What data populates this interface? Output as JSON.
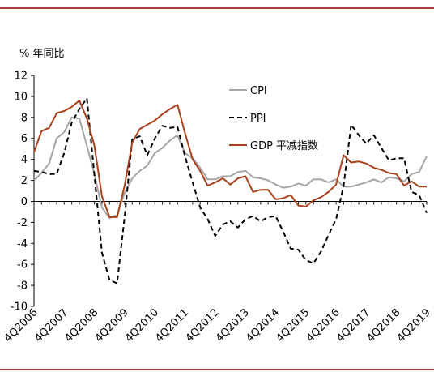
{
  "colors": {
    "top_rule": "#8b0000",
    "bottom_rule": "#8b0000",
    "cpi": "#a6a6a6",
    "ppi": "#000000",
    "gdp": "#a9411d"
  },
  "chart_data": {
    "type": "line",
    "unit_label": "% 年同比",
    "ylim": [
      -10,
      12
    ],
    "yticks": [
      -10,
      -8,
      -6,
      -4,
      -2,
      0,
      2,
      4,
      6,
      8,
      10,
      12
    ],
    "xlim": [
      0,
      52
    ],
    "xticks": [
      {
        "q": 0,
        "label": "4Q2006"
      },
      {
        "q": 4,
        "label": "4Q2007"
      },
      {
        "q": 8,
        "label": "4Q2008"
      },
      {
        "q": 12,
        "label": "4Q2009"
      },
      {
        "q": 16,
        "label": "4Q2010"
      },
      {
        "q": 20,
        "label": "4Q2011"
      },
      {
        "q": 24,
        "label": "4Q2012"
      },
      {
        "q": 28,
        "label": "4Q2013"
      },
      {
        "q": 32,
        "label": "4Q2014"
      },
      {
        "q": 36,
        "label": "4Q2015"
      },
      {
        "q": 40,
        "label": "4Q2016"
      },
      {
        "q": 44,
        "label": "4Q2017"
      },
      {
        "q": 48,
        "label": "4Q2018"
      },
      {
        "q": 52,
        "label": "4Q2019"
      }
    ],
    "grid": false,
    "legend_position": "top-right",
    "series": [
      {
        "name": "CPI",
        "style": "solid",
        "points": [
          [
            0,
            2.0
          ],
          [
            1,
            2.7
          ],
          [
            2,
            3.6
          ],
          [
            3,
            6.0
          ],
          [
            4,
            6.6
          ],
          [
            5,
            8.0
          ],
          [
            6,
            7.9
          ],
          [
            7,
            5.3
          ],
          [
            8,
            2.6
          ],
          [
            9,
            -0.6
          ],
          [
            10,
            -1.6
          ],
          [
            11,
            -1.3
          ],
          [
            12,
            0.8
          ],
          [
            13,
            2.2
          ],
          [
            14,
            2.9
          ],
          [
            15,
            3.4
          ],
          [
            16,
            4.6
          ],
          [
            17,
            5.1
          ],
          [
            18,
            5.8
          ],
          [
            19,
            6.3
          ],
          [
            20,
            4.6
          ],
          [
            21,
            4.1
          ],
          [
            22,
            3.2
          ],
          [
            23,
            2.1
          ],
          [
            24,
            2.1
          ],
          [
            25,
            2.4
          ],
          [
            26,
            2.4
          ],
          [
            27,
            2.8
          ],
          [
            28,
            2.9
          ],
          [
            29,
            2.3
          ],
          [
            30,
            2.2
          ],
          [
            31,
            2.0
          ],
          [
            32,
            1.6
          ],
          [
            33,
            1.3
          ],
          [
            34,
            1.4
          ],
          [
            35,
            1.7
          ],
          [
            36,
            1.5
          ],
          [
            37,
            2.1
          ],
          [
            38,
            2.1
          ],
          [
            39,
            1.8
          ],
          [
            40,
            2.1
          ],
          [
            41,
            1.4
          ],
          [
            42,
            1.4
          ],
          [
            43,
            1.6
          ],
          [
            44,
            1.8
          ],
          [
            45,
            2.1
          ],
          [
            46,
            1.8
          ],
          [
            47,
            2.3
          ],
          [
            48,
            2.2
          ],
          [
            49,
            1.9
          ],
          [
            50,
            2.6
          ],
          [
            51,
            2.8
          ],
          [
            52,
            4.3
          ]
        ]
      },
      {
        "name": "PPI",
        "style": "dashed",
        "points": [
          [
            0,
            2.9
          ],
          [
            1,
            2.8
          ],
          [
            2,
            2.6
          ],
          [
            3,
            2.6
          ],
          [
            4,
            4.6
          ],
          [
            5,
            7.5
          ],
          [
            6,
            8.8
          ],
          [
            7,
            9.8
          ],
          [
            8,
            2.5
          ],
          [
            9,
            -4.9
          ],
          [
            10,
            -7.5
          ],
          [
            11,
            -7.8
          ],
          [
            12,
            -1.5
          ],
          [
            13,
            5.9
          ],
          [
            14,
            6.2
          ],
          [
            15,
            4.4
          ],
          [
            16,
            6.0
          ],
          [
            17,
            7.2
          ],
          [
            18,
            7.0
          ],
          [
            19,
            7.1
          ],
          [
            20,
            4.3
          ],
          [
            21,
            1.8
          ],
          [
            22,
            -0.6
          ],
          [
            23,
            -1.7
          ],
          [
            24,
            -3.3
          ],
          [
            25,
            -2.2
          ],
          [
            26,
            -1.9
          ],
          [
            27,
            -2.5
          ],
          [
            28,
            -1.7
          ],
          [
            29,
            -1.4
          ],
          [
            30,
            -1.9
          ],
          [
            31,
            -1.5
          ],
          [
            32,
            -1.4
          ],
          [
            33,
            -2.9
          ],
          [
            34,
            -4.5
          ],
          [
            35,
            -4.6
          ],
          [
            36,
            -5.6
          ],
          [
            37,
            -5.9
          ],
          [
            38,
            -4.8
          ],
          [
            39,
            -3.2
          ],
          [
            40,
            -1.7
          ],
          [
            41,
            1.5
          ],
          [
            42,
            7.3
          ],
          [
            43,
            6.3
          ],
          [
            44,
            5.5
          ],
          [
            45,
            6.3
          ],
          [
            46,
            5.1
          ],
          [
            47,
            3.9
          ],
          [
            48,
            4.1
          ],
          [
            49,
            4.1
          ],
          [
            50,
            0.9
          ],
          [
            51,
            0.6
          ],
          [
            52,
            -1.1
          ]
        ]
      },
      {
        "name": "GDP 平减指数",
        "style": "solid",
        "points": [
          [
            0,
            4.7
          ],
          [
            1,
            6.7
          ],
          [
            2,
            7.0
          ],
          [
            3,
            8.4
          ],
          [
            4,
            8.6
          ],
          [
            5,
            9.0
          ],
          [
            6,
            9.6
          ],
          [
            7,
            7.9
          ],
          [
            8,
            5.3
          ],
          [
            9,
            0.5
          ],
          [
            10,
            -1.5
          ],
          [
            11,
            -1.5
          ],
          [
            12,
            1.5
          ],
          [
            13,
            5.6
          ],
          [
            14,
            6.9
          ],
          [
            15,
            7.3
          ],
          [
            16,
            7.7
          ],
          [
            17,
            8.3
          ],
          [
            18,
            8.8
          ],
          [
            19,
            9.2
          ],
          [
            20,
            6.5
          ],
          [
            21,
            4.0
          ],
          [
            22,
            2.9
          ],
          [
            23,
            1.5
          ],
          [
            24,
            1.8
          ],
          [
            25,
            2.2
          ],
          [
            26,
            1.6
          ],
          [
            27,
            2.2
          ],
          [
            28,
            2.4
          ],
          [
            29,
            0.9
          ],
          [
            30,
            1.1
          ],
          [
            31,
            1.1
          ],
          [
            32,
            0.2
          ],
          [
            33,
            0.3
          ],
          [
            34,
            0.6
          ],
          [
            35,
            -0.4
          ],
          [
            36,
            -0.5
          ],
          [
            37,
            0.1
          ],
          [
            38,
            0.4
          ],
          [
            39,
            0.9
          ],
          [
            40,
            1.6
          ],
          [
            41,
            4.4
          ],
          [
            42,
            3.7
          ],
          [
            43,
            3.8
          ],
          [
            44,
            3.6
          ],
          [
            45,
            3.2
          ],
          [
            46,
            3.0
          ],
          [
            47,
            2.7
          ],
          [
            48,
            2.6
          ],
          [
            49,
            1.5
          ],
          [
            50,
            1.9
          ],
          [
            51,
            1.4
          ],
          [
            52,
            1.4
          ]
        ]
      }
    ]
  }
}
